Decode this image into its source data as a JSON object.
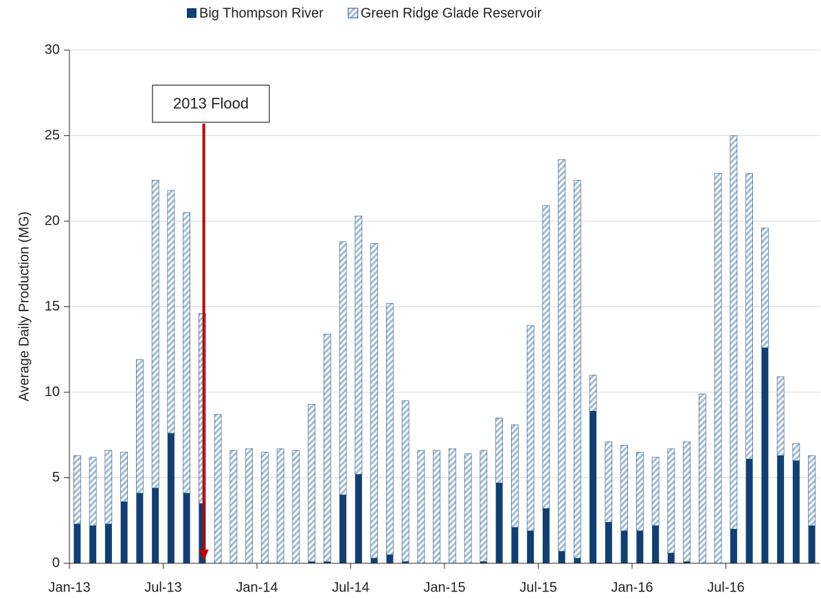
{
  "chart_data": {
    "type": "stacked-bar",
    "y_label": "Average Daily Production (MG)",
    "annotation": "2013 Flood",
    "categories": [
      "Jan-13",
      null,
      null,
      null,
      null,
      null,
      "Jul-13",
      null,
      null,
      null,
      null,
      null,
      "Jan-14",
      null,
      null,
      null,
      null,
      null,
      "Jul-14",
      null,
      null,
      null,
      null,
      null,
      "Jan-15",
      null,
      null,
      null,
      null,
      null,
      "Jul-15",
      null,
      null,
      null,
      null,
      null,
      "Jan-16",
      null,
      null,
      null,
      null,
      null,
      "Jul-16",
      null,
      null,
      null,
      null,
      null
    ],
    "series": [
      {
        "name": "Big Thompson River",
        "color": "#0f3f74",
        "values": [
          2.3,
          2.2,
          2.3,
          3.6,
          4.1,
          4.4,
          7.6,
          4.1,
          3.5,
          0,
          0,
          0,
          0,
          0,
          0,
          0.1,
          0.1,
          4.0,
          5.2,
          0.3,
          0.5,
          0.1,
          0,
          0,
          0,
          0,
          0.1,
          4.7,
          2.1,
          1.9,
          3.2,
          0.7,
          0.3,
          8.9,
          2.4,
          1.9,
          1.9,
          2.2,
          0.6,
          0.1,
          0,
          0,
          2.0,
          6.1,
          12.6,
          6.3,
          6.0,
          2.2
        ]
      },
      {
        "name": "Green Ridge Glade Reservoir",
        "color": "#9dbbd6",
        "values": [
          4.0,
          4.0,
          4.3,
          2.9,
          7.8,
          18.0,
          14.2,
          16.4,
          11.1,
          8.7,
          6.6,
          6.7,
          6.5,
          6.7,
          6.6,
          9.2,
          13.3,
          14.8,
          15.1,
          18.4,
          14.7,
          9.4,
          6.6,
          6.6,
          6.7,
          6.4,
          6.5,
          3.8,
          6.0,
          12.0,
          17.7,
          22.9,
          22.1,
          2.1,
          4.7,
          5.0,
          4.6,
          4.0,
          6.1,
          7.0,
          9.9,
          22.8,
          23.0,
          16.7,
          7.0,
          4.6,
          1.0,
          4.1
        ]
      }
    ],
    "ylim": [
      0,
      30
    ],
    "yticks": [
      0,
      5,
      10,
      15,
      20,
      25,
      30
    ],
    "grid": true
  }
}
